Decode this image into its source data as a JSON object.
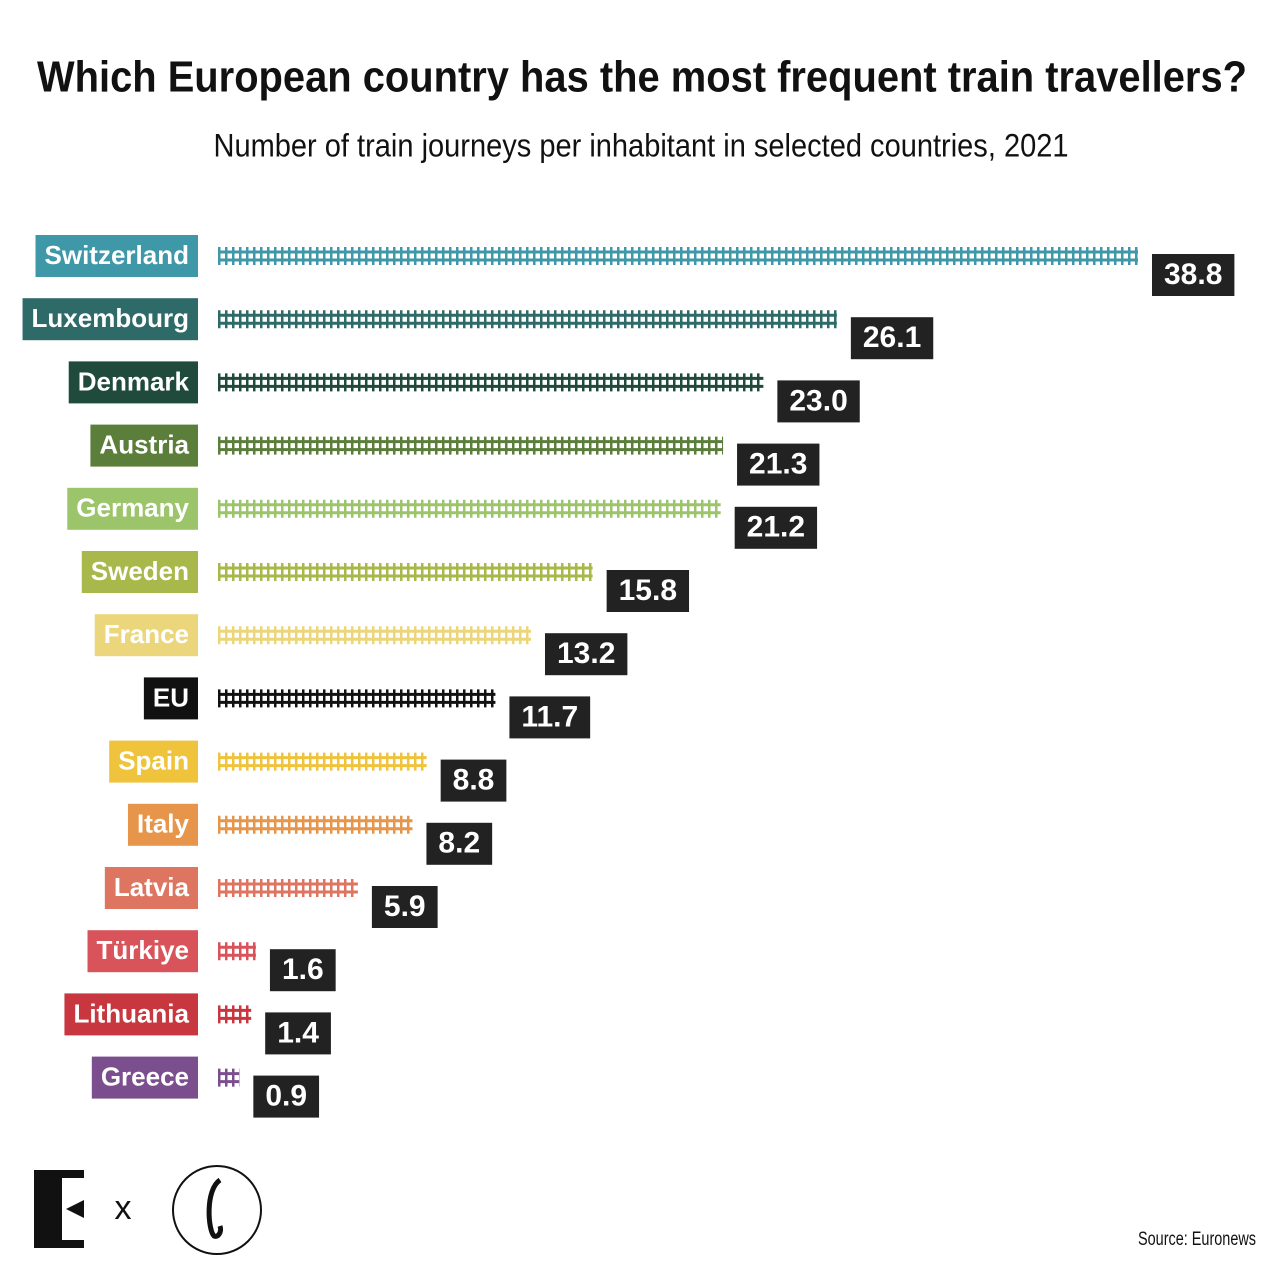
{
  "chart_data": {
    "type": "track-bar",
    "title": "Which European country has the most frequent train travellers?",
    "subtitle": "Number of train journeys per inhabitant in selected countries, 2021",
    "categories": [
      "Switzerland",
      "Luxembourg",
      "Denmark",
      "Austria",
      "Germany",
      "Sweden",
      "France",
      "EU",
      "Spain",
      "Italy",
      "Latvia",
      "Türkiye",
      "Lithuania",
      "Greece"
    ],
    "values": [
      38.8,
      26.1,
      23.0,
      21.3,
      21.2,
      15.8,
      13.2,
      11.7,
      8.8,
      8.2,
      5.9,
      1.6,
      1.4,
      0.9
    ],
    "value_labels": [
      "38.8",
      "26.1",
      "23.0",
      "21.3",
      "21.2",
      "15.8",
      "13.2",
      "11.7",
      "8.8",
      "8.2",
      "5.9",
      "1.6",
      "1.4",
      "0.9"
    ],
    "colors": [
      "#3f98a8",
      "#2e6a67",
      "#1f4a3c",
      "#5b7e3b",
      "#9cc46b",
      "#a8b84a",
      "#ecd67c",
      "#111111",
      "#efc33c",
      "#e6954a",
      "#de7560",
      "#d9545a",
      "#c8373f",
      "#7b4f8e"
    ],
    "branding_separator": "x",
    "source": "Source: Euronews"
  }
}
